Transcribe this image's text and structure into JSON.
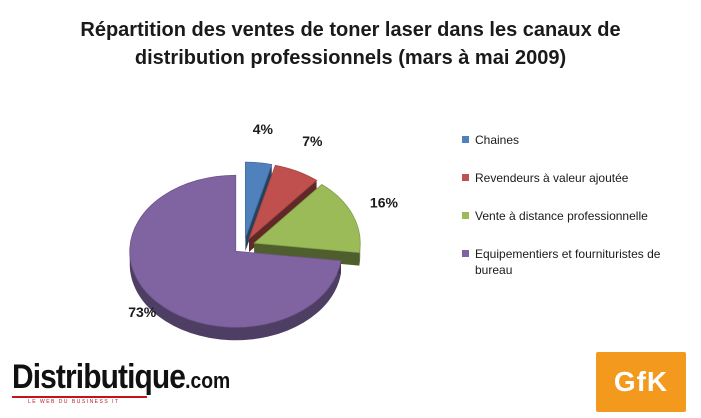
{
  "chart_data": {
    "type": "pie",
    "title": "Répartition des ventes de toner laser dans les canaux de distribution professionnels (mars à mai 2009)",
    "title_lines": [
      "Répartition des ventes de toner laser dans les canaux de",
      "distribution professionnels (mars à mai 2009)"
    ],
    "categories": [
      "Chaines",
      "Revendeurs à valeur ajoutée",
      "Vente à distance professionnelle",
      "Equipementiers et fournituristes de bureau"
    ],
    "values": [
      4,
      7,
      16,
      73
    ],
    "value_labels": [
      "4%",
      "7%",
      "16%",
      "73%"
    ],
    "unit": "%",
    "exploded": true,
    "three_d": true,
    "legend_position": "right",
    "colors": [
      "#4f81bd",
      "#c0504d",
      "#9bbb59",
      "#8064a2"
    ]
  },
  "legend_lines": [
    [
      "Chaines"
    ],
    [
      "Revendeurs à valeur ajoutée"
    ],
    [
      "Vente à distance professionnelle"
    ],
    [
      "Equipementiers et fournituristes de",
      "bureau"
    ]
  ],
  "logos": {
    "left": {
      "brand": "Distributique",
      "suffix": ".com",
      "tagline": "LE WEB DU BUSINESS IT"
    },
    "right": {
      "text": "GfK",
      "color": "#f39a1e"
    }
  }
}
